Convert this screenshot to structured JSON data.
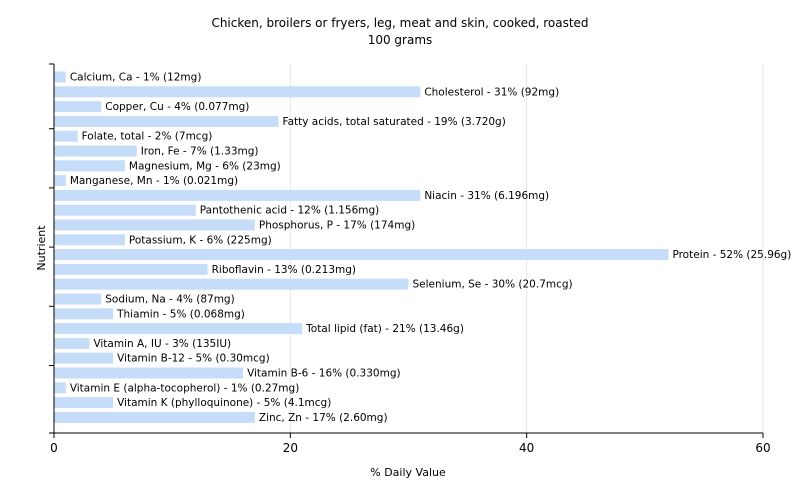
{
  "chart_data": {
    "type": "bar",
    "orientation": "horizontal",
    "title": "Chicken, broilers or fryers, leg, meat and skin, cooked, roasted",
    "subtitle": "100 grams",
    "xlabel": "% Daily Value",
    "ylabel": "Nutrient",
    "xlim": [
      0,
      60
    ],
    "xticks": [
      "0",
      "20",
      "40",
      "60"
    ],
    "grid": true,
    "bar_color": "#c6ddf9",
    "categories": [
      "Calcium, Ca",
      "Cholesterol",
      "Copper, Cu",
      "Fatty acids, total saturated",
      "Folate, total",
      "Iron, Fe",
      "Magnesium, Mg",
      "Manganese, Mn",
      "Niacin",
      "Pantothenic acid",
      "Phosphorus, P",
      "Potassium, K",
      "Protein",
      "Riboflavin",
      "Selenium, Se",
      "Sodium, Na",
      "Thiamin",
      "Total lipid (fat)",
      "Vitamin A, IU",
      "Vitamin B-12",
      "Vitamin B-6",
      "Vitamin E (alpha-tocopherol)",
      "Vitamin K (phylloquinone)",
      "Zinc, Zn"
    ],
    "values": [
      1,
      31,
      4,
      19,
      2,
      7,
      6,
      1,
      31,
      12,
      17,
      6,
      52,
      13,
      30,
      4,
      5,
      21,
      3,
      5,
      16,
      1,
      5,
      17
    ],
    "labels": [
      "Calcium, Ca - 1% (12mg)",
      "Cholesterol - 31% (92mg)",
      "Copper, Cu - 4% (0.077mg)",
      "Fatty acids, total saturated - 19% (3.720g)",
      "Folate, total - 2% (7mcg)",
      "Iron, Fe - 7% (1.33mg)",
      "Magnesium, Mg - 6% (23mg)",
      "Manganese, Mn - 1% (0.021mg)",
      "Niacin - 31% (6.196mg)",
      "Pantothenic acid - 12% (1.156mg)",
      "Phosphorus, P - 17% (174mg)",
      "Potassium, K - 6% (225mg)",
      "Protein - 52% (25.96g)",
      "Riboflavin - 13% (0.213mg)",
      "Selenium, Se - 30% (20.7mcg)",
      "Sodium, Na - 4% (87mg)",
      "Thiamin - 5% (0.068mg)",
      "Total lipid (fat) - 21% (13.46g)",
      "Vitamin A, IU - 3% (135IU)",
      "Vitamin B-12 - 5% (0.30mcg)",
      "Vitamin B-6 - 16% (0.330mg)",
      "Vitamin E (alpha-tocopherol) - 1% (0.27mg)",
      "Vitamin K (phylloquinone) - 5% (4.1mcg)",
      "Zinc, Zn - 17% (2.60mg)"
    ]
  }
}
